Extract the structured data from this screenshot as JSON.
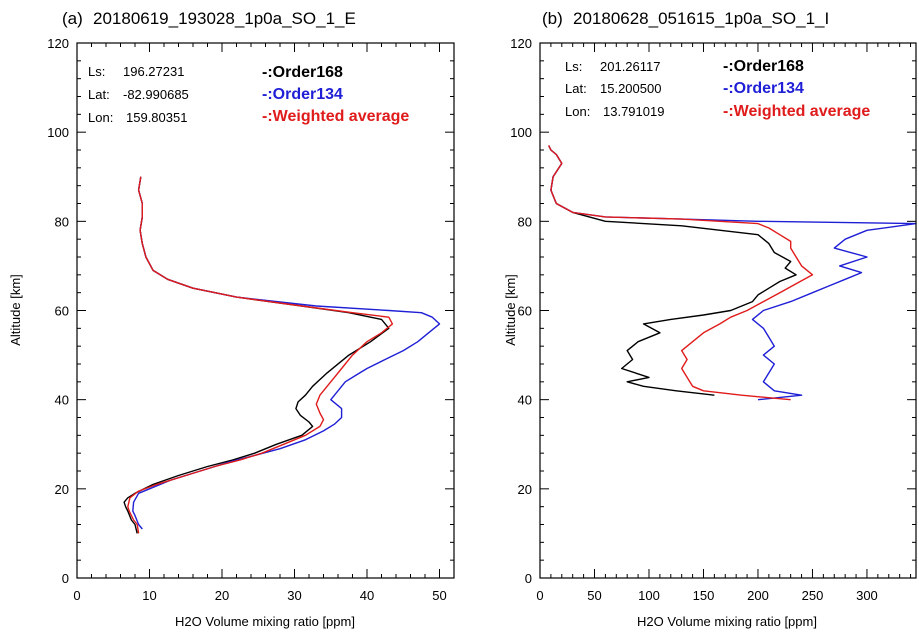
{
  "chart_data": [
    {
      "type": "line",
      "panel_label": "(a)",
      "title": "20180619_193028_1p0a_SO_1_E",
      "xlabel": "H2O Volume mixing ratio [ppm]",
      "ylabel": "Altitude [km]",
      "xlim": [
        0,
        52
      ],
      "ylim": [
        0,
        120
      ],
      "xticks": [
        0,
        10,
        20,
        30,
        40,
        50
      ],
      "yticks": [
        0,
        20,
        40,
        60,
        80,
        100,
        120
      ],
      "info": [
        {
          "label": "Ls:",
          "value": "196.27231"
        },
        {
          "label": "Lat:",
          "value": "-82.990685"
        },
        {
          "label": "Lon:",
          "value": "159.80351"
        }
      ],
      "legend": [
        {
          "text": "-:Order168",
          "color": "#000000"
        },
        {
          "text": "-:Order134",
          "color": "#1f1fd6"
        },
        {
          "text": "-:Weighted average",
          "color": "#e01b1b"
        }
      ],
      "series": [
        {
          "name": "Order168",
          "color": "#000000",
          "x": [
            8.3,
            8.0,
            7.5,
            7.0,
            6.7,
            6.5,
            7.0,
            8.0,
            10.5,
            14.0,
            18.0,
            21.5,
            24.5,
            27.5,
            31.0,
            32.5,
            32.0,
            30.8,
            30.2,
            30.5,
            31.5,
            32.5,
            34.5,
            37.5,
            40.5,
            43.0,
            42.0,
            37.5,
            31.0,
            22.0,
            16.0,
            12.5,
            10.5,
            9.5,
            9.0,
            8.7,
            9.0,
            9.0,
            8.5,
            8.8
          ],
          "y": [
            10,
            12,
            13,
            15,
            16,
            17,
            18,
            19,
            21,
            23,
            25,
            26.5,
            28,
            30,
            32,
            34,
            35,
            36.5,
            38,
            39.5,
            41,
            43,
            46,
            50,
            53,
            56,
            58,
            59.5,
            61,
            63,
            65,
            67,
            69,
            72,
            75,
            78,
            81,
            84,
            87,
            90
          ]
        },
        {
          "name": "Order134",
          "color": "#1f1fd6",
          "x": [
            9.0,
            8.5,
            8.0,
            7.7,
            7.8,
            8.5,
            10.0,
            13.0,
            17.0,
            21.0,
            24.5,
            28.0,
            31.5,
            34.0,
            35.5,
            36.5,
            36.5,
            35.0,
            36.0,
            37.0,
            38.5,
            40.0,
            42.5,
            45.0,
            47.0,
            48.5,
            50.0,
            49.0,
            47.5,
            43.0,
            33.0,
            22.0,
            16.0,
            12.5,
            10.5,
            9.5,
            9.0,
            8.7,
            9.0,
            9.0,
            8.5,
            8.8
          ],
          "y": [
            11,
            12,
            14,
            15,
            17,
            19,
            20,
            22,
            24,
            26,
            27.5,
            29,
            31,
            33,
            34.5,
            36,
            38,
            40,
            42,
            44,
            45.5,
            47,
            49,
            51,
            53,
            55,
            57,
            58.5,
            59.5,
            60,
            61,
            63,
            65,
            67,
            69,
            72,
            75,
            78,
            81,
            84,
            87,
            90
          ]
        },
        {
          "name": "Weighted average",
          "color": "#e01b1b",
          "x": [
            8.5,
            8.3,
            7.8,
            7.2,
            7.0,
            7.3,
            8.5,
            11.0,
            15.0,
            19.0,
            22.5,
            25.5,
            28.5,
            31.5,
            33.5,
            34.0,
            33.5,
            33.0,
            33.5,
            34.5,
            35.5,
            36.5,
            38.0,
            40.0,
            42.0,
            43.5,
            43.0,
            38.0,
            31.0,
            22.0,
            16.0,
            12.5,
            10.5,
            9.5,
            9.0,
            8.7,
            9.0,
            9.0,
            8.5,
            8.8
          ],
          "y": [
            10,
            12,
            13,
            15,
            16,
            18,
            19.5,
            21,
            23,
            25,
            26.5,
            28,
            30,
            32,
            34,
            35.5,
            37,
            39,
            41,
            43,
            45,
            47,
            50,
            53,
            55,
            57,
            58.5,
            59.5,
            61,
            63,
            65,
            67,
            69,
            72,
            75,
            78,
            81,
            84,
            87,
            90
          ]
        }
      ]
    },
    {
      "type": "line",
      "panel_label": "(b)",
      "title": "20180628_051615_1p0a_SO_1_I",
      "xlabel": "H2O Volume mixing ratio [ppm]",
      "ylabel": "Altitude [km]",
      "xlim": [
        0,
        345
      ],
      "ylim": [
        0,
        120
      ],
      "xticks": [
        0,
        50,
        100,
        150,
        200,
        250,
        300
      ],
      "yticks": [
        0,
        20,
        40,
        60,
        80,
        100,
        120
      ],
      "info": [
        {
          "label": "Ls:",
          "value": "201.26117"
        },
        {
          "label": "Lat:",
          "value": "15.200500"
        },
        {
          "label": "Lon:",
          "value": "13.791019"
        }
      ],
      "legend": [
        {
          "text": "-:Order168",
          "color": "#000000"
        },
        {
          "text": "-:Order134",
          "color": "#1f1fd6"
        },
        {
          "text": "-:Weighted average",
          "color": "#e01b1b"
        }
      ],
      "series": [
        {
          "name": "Order168",
          "color": "#000000",
          "x": [
            160,
            125,
            95,
            80,
            100,
            75,
            85,
            80,
            90,
            110,
            95,
            120,
            150,
            175,
            195,
            200,
            210,
            220,
            235,
            225,
            230,
            215,
            210,
            200,
            130,
            60,
            30,
            15,
            10,
            12,
            20,
            15,
            10,
            8
          ],
          "y": [
            41,
            42,
            43,
            44,
            45,
            47,
            49,
            51,
            53,
            55,
            57,
            58,
            59,
            60,
            62,
            63.5,
            65,
            66.5,
            68,
            69.5,
            71,
            73,
            75,
            77,
            79,
            80,
            82,
            84,
            87,
            90,
            93,
            95,
            96,
            97
          ]
        },
        {
          "name": "Order134",
          "color": "#1f1fd6",
          "x": [
            200,
            240,
            215,
            205,
            210,
            215,
            205,
            215,
            210,
            205,
            195,
            205,
            230,
            250,
            265,
            280,
            295,
            275,
            300,
            270,
            280,
            300,
            345,
            200,
            130,
            60,
            30,
            15,
            10,
            12,
            20,
            15,
            10,
            8
          ],
          "y": [
            40,
            41,
            42,
            44,
            46,
            48,
            50,
            52,
            54,
            56,
            58,
            60,
            62,
            64,
            65.5,
            67,
            68.5,
            70,
            72,
            74,
            76,
            78,
            79.5,
            80,
            80.5,
            81,
            82,
            84,
            87,
            90,
            93,
            95,
            96,
            97
          ]
        },
        {
          "name": "Weighted average",
          "color": "#e01b1b",
          "x": [
            230,
            185,
            150,
            140,
            135,
            130,
            135,
            130,
            140,
            150,
            165,
            175,
            190,
            205,
            220,
            235,
            250,
            240,
            235,
            230,
            230,
            220,
            210,
            200,
            130,
            60,
            30,
            15,
            10,
            12,
            20,
            15,
            10,
            8
          ],
          "y": [
            40,
            41,
            42,
            43,
            45,
            47,
            49,
            51,
            53,
            55,
            57,
            58.5,
            60,
            62,
            64,
            66,
            68,
            70,
            72,
            74,
            75.5,
            77,
            78.5,
            79.5,
            80.5,
            81,
            82,
            84,
            87,
            90,
            93,
            95,
            96,
            97
          ]
        }
      ]
    }
  ]
}
